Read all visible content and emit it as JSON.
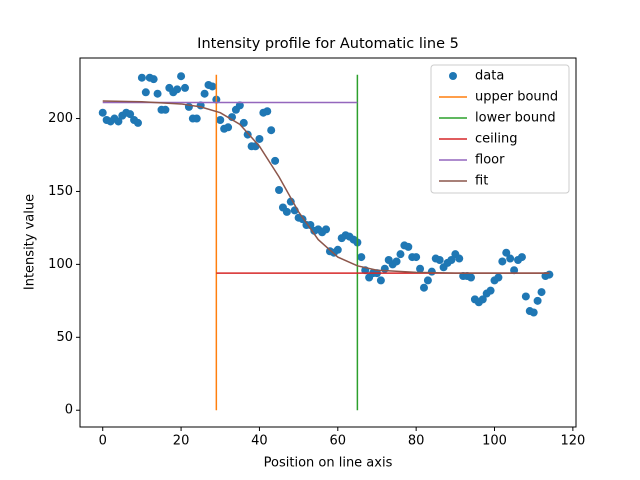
{
  "chart_data": {
    "type": "line",
    "title": "Intensity profile for Automatic line 5",
    "x_label": "Position on line axis",
    "y_label": "Intensity value",
    "xlim": [
      -5.8,
      120.8
    ],
    "ylim": [
      -11.5,
      241.5
    ],
    "xticks": [
      0,
      20,
      40,
      60,
      80,
      100,
      120
    ],
    "yticks": [
      0,
      50,
      100,
      150,
      200
    ],
    "legend": "upper right",
    "series": [
      {
        "name": "data",
        "color": "#1f77b4",
        "style": "marker",
        "x": [
          0,
          1,
          2,
          3,
          4,
          5,
          6,
          7,
          8,
          9,
          10,
          11,
          12,
          13,
          14,
          15,
          16,
          17,
          18,
          19,
          20,
          21,
          22,
          23,
          24,
          25,
          26,
          27,
          28,
          29,
          30,
          31,
          32,
          33,
          34,
          35,
          36,
          37,
          38,
          39,
          40,
          41,
          42,
          43,
          44,
          45,
          46,
          47,
          48,
          49,
          50,
          51,
          52,
          53,
          54,
          55,
          56,
          57,
          58,
          59,
          60,
          61,
          62,
          63,
          64,
          65,
          66,
          67,
          68,
          69,
          70,
          71,
          72,
          73,
          74,
          75,
          76,
          77,
          78,
          79,
          80,
          81,
          82,
          83,
          84,
          85,
          86,
          87,
          88,
          89,
          90,
          91,
          92,
          93,
          94,
          95,
          96,
          97,
          98,
          99,
          100,
          101,
          102,
          103,
          104,
          105,
          106,
          107,
          108,
          109,
          110,
          111,
          112,
          113,
          114
        ],
        "values": [
          204,
          199,
          198,
          200,
          198,
          202,
          204,
          203,
          199,
          197,
          228,
          218,
          228,
          227,
          217,
          206,
          206,
          221,
          218,
          220,
          229,
          221,
          208,
          200,
          200,
          209,
          217,
          223,
          222,
          213,
          199,
          193,
          194,
          201,
          206,
          209,
          197,
          189,
          181,
          181,
          186,
          204,
          205,
          192,
          171,
          151,
          139,
          136,
          143,
          137,
          132,
          131,
          127,
          127,
          123,
          124,
          122,
          124,
          109,
          108,
          110,
          118,
          120,
          119,
          117,
          115,
          105,
          96,
          91,
          94,
          94,
          89,
          97,
          103,
          100,
          102,
          107,
          113,
          112,
          105,
          105,
          97,
          84,
          89,
          95,
          104,
          103,
          98,
          101,
          103,
          107,
          104,
          92,
          92,
          91,
          76,
          74,
          76,
          80,
          82,
          89,
          91,
          102,
          108,
          104,
          96,
          103,
          105,
          78,
          68,
          67,
          75,
          81,
          92,
          93
        ]
      },
      {
        "name": "upper bound",
        "color": "#ff7f0e",
        "style": "line",
        "x": [
          29,
          29
        ],
        "values": [
          0,
          230
        ]
      },
      {
        "name": "lower bound",
        "color": "#2ca02c",
        "style": "line",
        "x": [
          65,
          65
        ],
        "values": [
          0,
          230
        ]
      },
      {
        "name": "ceiling",
        "color": "#d62728",
        "style": "line",
        "x": [
          29,
          114
        ],
        "values": [
          94,
          94
        ]
      },
      {
        "name": "floor",
        "color": "#9467bd",
        "style": "line",
        "x": [
          0,
          65
        ],
        "values": [
          211,
          211
        ]
      },
      {
        "name": "fit",
        "color": "#8c564b",
        "style": "line",
        "x": [
          0,
          10,
          20,
          25,
          30,
          35,
          40,
          45,
          50,
          55,
          60,
          65,
          70,
          80,
          90,
          114
        ],
        "values": [
          212,
          211.5,
          210,
          208,
          204,
          196,
          181,
          160,
          136,
          117,
          105,
          99,
          96,
          94.5,
          94,
          94
        ]
      }
    ]
  }
}
